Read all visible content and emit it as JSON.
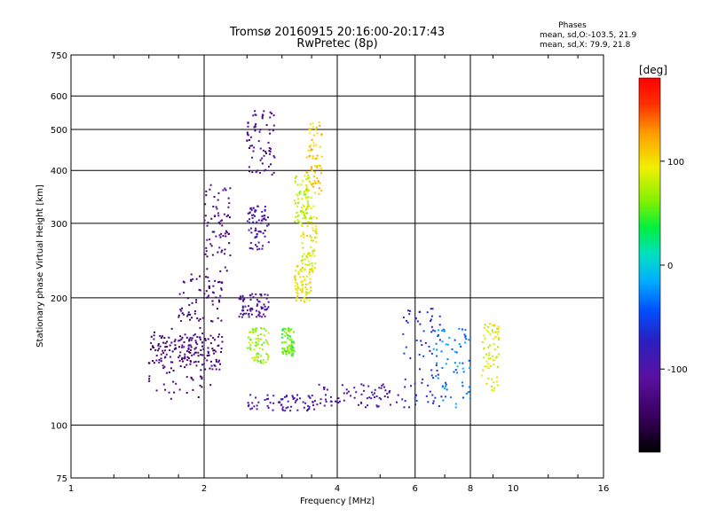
{
  "chart_data": {
    "type": "scatter",
    "title": "Tromsø 20160915 20:16:00-20:17:43",
    "subtitle": "RwPretec (8p)",
    "xlabel": "Frequency [MHz]",
    "ylabel": "Stationary phase Virtual Height [km]",
    "x_scale": "log2",
    "y_scale": "log",
    "xlim": [
      1,
      16
    ],
    "ylim": [
      75,
      750
    ],
    "x_ticks": [
      1,
      2,
      4,
      6,
      8,
      10,
      16
    ],
    "x_grid": [
      2,
      4,
      6,
      8
    ],
    "y_ticks": [
      75,
      100,
      200,
      300,
      400,
      500,
      600,
      750
    ],
    "grid": true,
    "colorbar": {
      "label": "[deg]",
      "range": [
        -180,
        180
      ],
      "ticks": [
        -100,
        0,
        100
      ]
    },
    "info": {
      "heading": "Phases",
      "line1": "mean, sd,O:-103.5, 21.9",
      "line2": "mean, sd,X:  79.9, 21.8"
    },
    "series": [
      {
        "x": [
          1.5,
          2.1
        ],
        "y": [
          115,
          170
        ],
        "phase": -135
      },
      {
        "x": [
          1.75,
          2.2
        ],
        "y": [
          175,
          230
        ],
        "phase": -130
      },
      {
        "x": [
          1.8,
          2.2
        ],
        "y": [
          135,
          165
        ],
        "phase": -125
      },
      {
        "x": [
          1.5,
          1.9
        ],
        "y": [
          140,
          165
        ],
        "phase": -130
      },
      {
        "x": [
          2.0,
          2.3
        ],
        "y": [
          230,
          370
        ],
        "phase": -125
      },
      {
        "x": [
          2.5,
          2.9
        ],
        "y": [
          390,
          560
        ],
        "phase": -118
      },
      {
        "x": [
          2.5,
          2.8
        ],
        "y": [
          260,
          330
        ],
        "phase": -100
      },
      {
        "x": [
          2.4,
          2.8
        ],
        "y": [
          180,
          205
        ],
        "phase": -105
      },
      {
        "x": [
          2.5,
          3.6
        ],
        "y": [
          108,
          118
        ],
        "phase": -95
      },
      {
        "x": [
          3.6,
          5.5
        ],
        "y": [
          110,
          125
        ],
        "phase": -100
      },
      {
        "x": [
          5.6,
          6.9
        ],
        "y": [
          110,
          190
        ],
        "phase": -70
      },
      {
        "x": [
          6.6,
          8.0
        ],
        "y": [
          110,
          170
        ],
        "phase": -30
      },
      {
        "x": [
          8.5,
          9.3
        ],
        "y": [
          120,
          175
        ],
        "phase": 90
      },
      {
        "x": [
          2.5,
          2.8
        ],
        "y": [
          140,
          170
        ],
        "phase": 70
      },
      {
        "x": [
          3.0,
          3.2
        ],
        "y": [
          145,
          170
        ],
        "phase": 55
      },
      {
        "x": [
          3.2,
          3.5
        ],
        "y": [
          195,
          240
        ],
        "phase": 95
      },
      {
        "x": [
          3.3,
          3.6
        ],
        "y": [
          230,
          330
        ],
        "phase": 90
      },
      {
        "x": [
          3.4,
          3.7
        ],
        "y": [
          350,
          520
        ],
        "phase": 110
      },
      {
        "x": [
          3.2,
          3.5
        ],
        "y": [
          300,
          390
        ],
        "phase": 80
      }
    ]
  },
  "colors": {
    "grid": "#000000",
    "colormap": [
      "#000000",
      "#3a0060",
      "#5a10a0",
      "#2a20c0",
      "#0050ff",
      "#00b0ff",
      "#00e0c0",
      "#00f040",
      "#80f000",
      "#f0f000",
      "#ffa000",
      "#ff3000",
      "#ff0000"
    ]
  }
}
